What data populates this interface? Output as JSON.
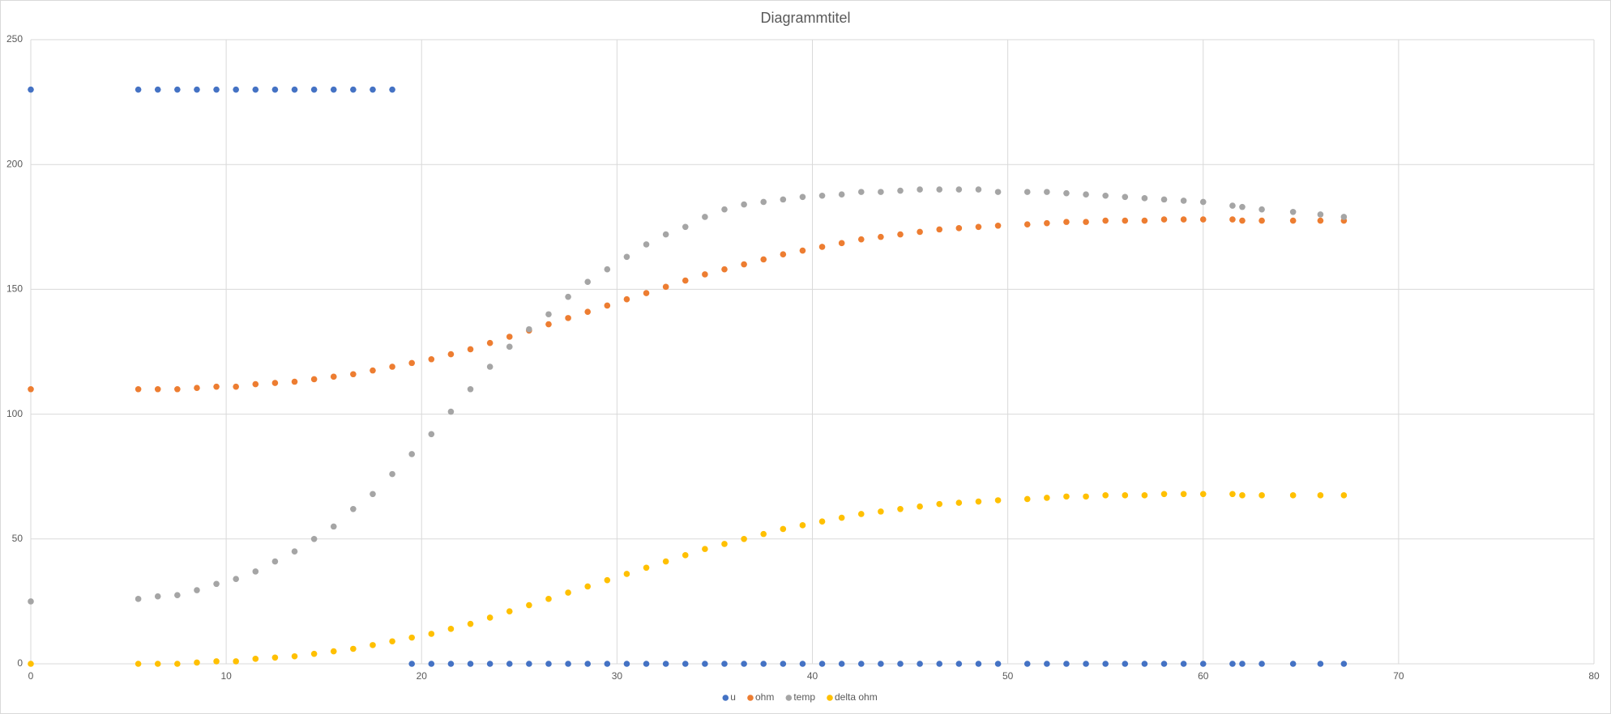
{
  "chart_data": {
    "type": "scatter",
    "title": "Diagrammtitel",
    "x": [
      0,
      5.5,
      6.5,
      7.5,
      8.5,
      9.5,
      10.5,
      11.5,
      12.5,
      13.5,
      14.5,
      15.5,
      16.5,
      17.5,
      18.5,
      19.5,
      20.5,
      21.5,
      22.5,
      23.5,
      24.5,
      25.5,
      26.5,
      27.5,
      28.5,
      29.5,
      30.5,
      31.5,
      32.5,
      33.5,
      34.5,
      35.5,
      36.5,
      37.5,
      38.5,
      39.5,
      40.5,
      41.5,
      42.5,
      43.5,
      44.5,
      45.5,
      46.5,
      47.5,
      48.5,
      49.5,
      51,
      52,
      53,
      54,
      55,
      56,
      57,
      58,
      59,
      60,
      61.5,
      62,
      63,
      64.6,
      66,
      67.2
    ],
    "series": [
      {
        "name": "u",
        "color": "#4472c4",
        "values": [
          230,
          230,
          230,
          230,
          230,
          230,
          230,
          230,
          230,
          230,
          230,
          230,
          230,
          230,
          230,
          0,
          0,
          0,
          0,
          0,
          0,
          0,
          0,
          0,
          0,
          0,
          0,
          0,
          0,
          0,
          0,
          0,
          0,
          0,
          0,
          0,
          0,
          0,
          0,
          0,
          0,
          0,
          0,
          0,
          0,
          0,
          0,
          0,
          0,
          0,
          0,
          0,
          0,
          0,
          0,
          0,
          0,
          0,
          0,
          0,
          0,
          0
        ]
      },
      {
        "name": "ohm",
        "color": "#ed7d31",
        "values": [
          110,
          110,
          110,
          110,
          110.5,
          111,
          111,
          112,
          112.5,
          113,
          114,
          115,
          116,
          117.5,
          119,
          120.5,
          122,
          124,
          126,
          128.5,
          131,
          133.5,
          136,
          138.5,
          141,
          143.5,
          146,
          148.5,
          151,
          153.5,
          156,
          158,
          160,
          162,
          164,
          165.5,
          167,
          168.5,
          170,
          171,
          172,
          173,
          174,
          174.5,
          175,
          175.5,
          176,
          176.5,
          177,
          177,
          177.5,
          177.5,
          177.5,
          178,
          178,
          178,
          178,
          177.5,
          177.5,
          177.5,
          177.5,
          177.5
        ]
      },
      {
        "name": "temp",
        "color": "#a5a5a5",
        "values": [
          25,
          26,
          27,
          27.5,
          29.5,
          32,
          34,
          37,
          41,
          45,
          50,
          55,
          62,
          68,
          76,
          84,
          92,
          101,
          110,
          119,
          127,
          134,
          140,
          147,
          153,
          158,
          163,
          168,
          172,
          175,
          179,
          182,
          184,
          185,
          186,
          187,
          187.5,
          188,
          189,
          189,
          189.5,
          190,
          190,
          190,
          190,
          189,
          189,
          189,
          188.5,
          188,
          187.5,
          187,
          186.5,
          186,
          185.5,
          185,
          183.5,
          183,
          182,
          181,
          180,
          179
        ]
      },
      {
        "name": "delta ohm",
        "color": "#ffc000",
        "values": [
          0,
          0,
          0,
          0,
          0.5,
          1,
          1,
          2,
          2.5,
          3,
          4,
          5,
          6,
          7.5,
          9,
          10.5,
          12,
          14,
          16,
          18.5,
          21,
          23.5,
          26,
          28.5,
          31,
          33.5,
          36,
          38.5,
          41,
          43.5,
          46,
          48,
          50,
          52,
          54,
          55.5,
          57,
          58.5,
          60,
          61,
          62,
          63,
          64,
          64.5,
          65,
          65.5,
          66,
          66.5,
          67,
          67,
          67.5,
          67.5,
          67.5,
          68,
          68,
          68,
          68,
          67.5,
          67.5,
          67.5,
          67.5,
          67.5
        ]
      }
    ],
    "xlim": [
      0,
      80
    ],
    "xticks": [
      0,
      10,
      20,
      30,
      40,
      50,
      60,
      70,
      80
    ],
    "ylim": [
      0,
      250
    ],
    "yticks": [
      0,
      50,
      100,
      150,
      200,
      250
    ],
    "grid": true,
    "legend": "bottom"
  }
}
